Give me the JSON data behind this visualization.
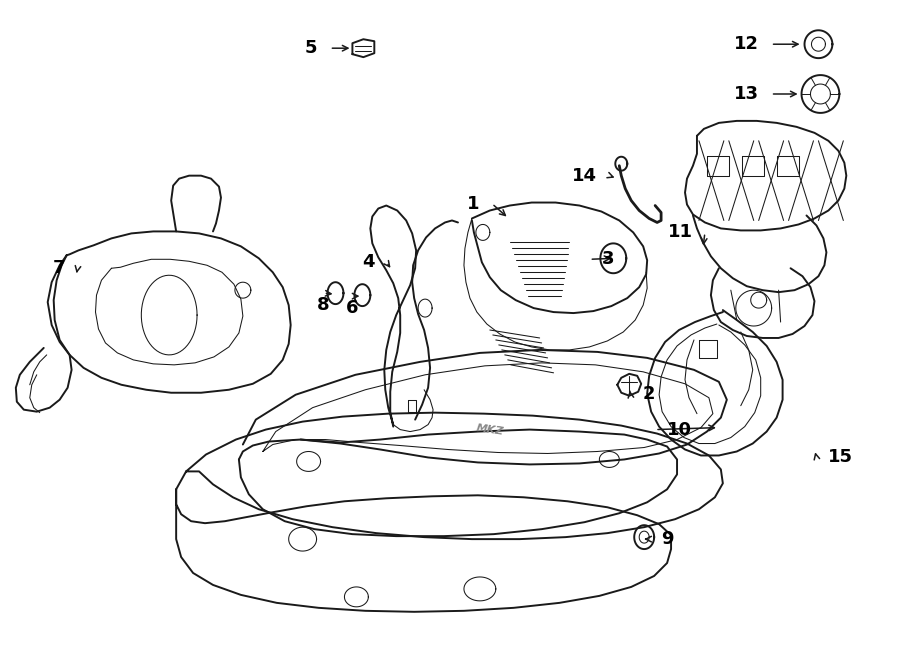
{
  "bg_color": "#ffffff",
  "line_color": "#1a1a1a",
  "label_color": "#000000",
  "fig_width": 9.0,
  "fig_height": 6.61,
  "dpi": 100,
  "lw_main": 1.4,
  "lw_thin": 0.75,
  "lw_thick": 2.0,
  "font_size": 13
}
